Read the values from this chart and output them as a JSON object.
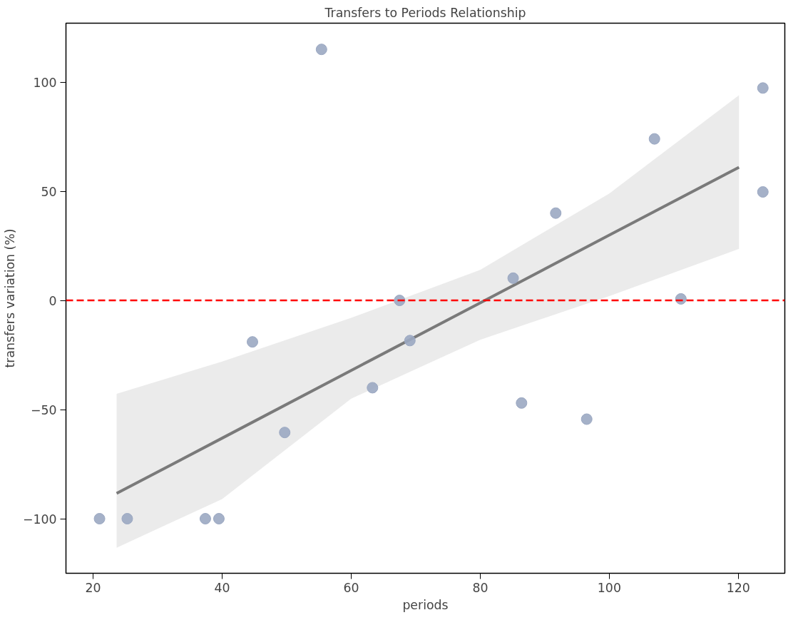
{
  "chart_data": {
    "type": "scatter",
    "title": "Transfers to Periods Relationship",
    "xlabel": "periods",
    "ylabel": "transfers variation (%)",
    "xlim": [
      15.8,
      127.2
    ],
    "ylim": [
      -125,
      127
    ],
    "xticks": [
      20,
      40,
      60,
      80,
      100,
      120
    ],
    "yticks": [
      -100,
      -50,
      0,
      50,
      100
    ],
    "grid": false,
    "series": [
      {
        "marker": "circle",
        "color": "#9ba8c2",
        "x": [
          21,
          25.3,
          37.4,
          39.5,
          44.7,
          49.7,
          55.4,
          63.3,
          67.5,
          69.1,
          85.1,
          86.4,
          91.7,
          96.5,
          107,
          111.1,
          123.8,
          123.8
        ],
        "values": [
          -100,
          -100,
          -100,
          -100,
          -19,
          -60.5,
          115,
          -40,
          0,
          -18.4,
          10.2,
          -47,
          40,
          -54.4,
          74,
          0.7,
          97.3,
          49.7
        ]
      },
      {
        "type": "line",
        "color": "#7a7a7a",
        "line_style": "solid",
        "x": [
          23.65,
          40,
          60,
          80,
          100,
          120.1
        ],
        "values": [
          -88.4,
          -63.1,
          -32.1,
          -1.1,
          29.9,
          61
        ],
        "lower": [
          -113.3,
          -91,
          -45,
          -18,
          2,
          23.6
        ],
        "upper": [
          -42.8,
          -28,
          -8,
          14,
          49,
          94
        ]
      }
    ],
    "ref_lines": [
      {
        "axis": "y",
        "value": 0,
        "color": "#ff0000",
        "line_style": "dashed"
      }
    ]
  }
}
